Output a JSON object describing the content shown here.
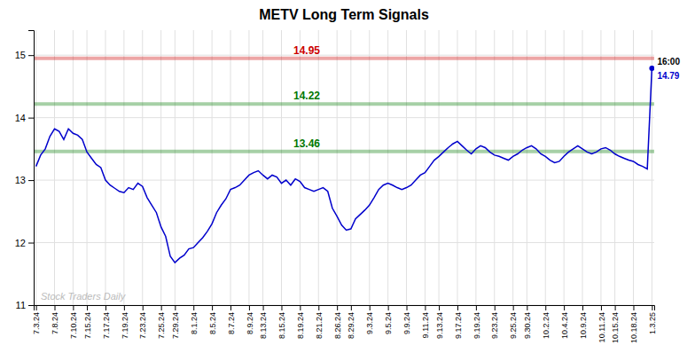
{
  "chart_data": {
    "type": "line",
    "title": "METV Long Term Signals",
    "color": "#0000CC",
    "grid": true,
    "categories": [
      "7.3.24",
      null,
      null,
      null,
      "7.8.24",
      null,
      null,
      null,
      "7.10.24",
      null,
      null,
      "7.15.24",
      null,
      null,
      null,
      "7.17.24",
      null,
      null,
      null,
      "7.19.24",
      null,
      null,
      null,
      "7.23.24",
      null,
      null,
      null,
      "7.25.24",
      null,
      null,
      "7.29.24",
      null,
      null,
      null,
      "8.1.24",
      null,
      null,
      null,
      "8.5.24",
      null,
      null,
      null,
      "8.7.24",
      null,
      null,
      null,
      "8.9.24",
      null,
      null,
      "8.13.24",
      null,
      null,
      null,
      "8.15.24",
      null,
      null,
      null,
      "8.19.24",
      null,
      null,
      null,
      "8.21.24",
      null,
      null,
      null,
      "8.26.24",
      null,
      null,
      "8.29.24",
      null,
      null,
      null,
      "9.3.24",
      null,
      null,
      null,
      "9.5.24",
      null,
      null,
      null,
      "9.9.24",
      null,
      null,
      null,
      "9.11.24",
      null,
      null,
      "9.13.24",
      null,
      null,
      null,
      "9.17.24",
      null,
      null,
      null,
      "9.19.24",
      null,
      null,
      null,
      "9.23.24",
      null,
      null,
      null,
      "9.25.24",
      null,
      null,
      "9.30.24",
      null,
      null,
      null,
      "10.2.24",
      null,
      null,
      null,
      "10.4.24",
      null,
      null,
      null,
      "10.9.24",
      null,
      null,
      null,
      "10.11.24",
      null,
      null,
      "10.15.24",
      null,
      null,
      null,
      "10.18.24",
      null,
      null,
      null,
      "1.3.25"
    ],
    "values": [
      13.22,
      13.4,
      13.5,
      13.7,
      13.82,
      13.78,
      13.65,
      13.82,
      13.75,
      13.72,
      13.65,
      13.45,
      13.35,
      13.25,
      13.2,
      13.0,
      12.92,
      12.87,
      12.82,
      12.8,
      12.88,
      12.85,
      12.95,
      12.9,
      12.72,
      12.6,
      12.48,
      12.25,
      12.1,
      11.78,
      11.68,
      11.75,
      11.8,
      11.9,
      11.92,
      12.0,
      12.08,
      12.18,
      12.3,
      12.48,
      12.6,
      12.7,
      12.85,
      12.88,
      12.92,
      13.0,
      13.08,
      13.12,
      13.15,
      13.08,
      13.02,
      13.08,
      13.05,
      12.95,
      13.0,
      12.92,
      13.02,
      12.98,
      12.88,
      12.85,
      12.82,
      12.85,
      12.88,
      12.82,
      12.55,
      12.42,
      12.28,
      12.2,
      12.22,
      12.38,
      12.45,
      12.52,
      12.6,
      12.72,
      12.85,
      12.92,
      12.95,
      12.92,
      12.88,
      12.85,
      12.88,
      12.92,
      13.0,
      13.08,
      13.12,
      13.22,
      13.32,
      13.38,
      13.45,
      13.52,
      13.58,
      13.62,
      13.55,
      13.48,
      13.42,
      13.5,
      13.55,
      13.52,
      13.45,
      13.4,
      13.38,
      13.35,
      13.32,
      13.38,
      13.42,
      13.48,
      13.52,
      13.55,
      13.5,
      13.42,
      13.38,
      13.32,
      13.28,
      13.3,
      13.38,
      13.45,
      13.5,
      13.55,
      13.5,
      13.45,
      13.42,
      13.45,
      13.5,
      13.52,
      13.48,
      13.42,
      13.38,
      13.35,
      13.32,
      13.3,
      13.25,
      13.22,
      13.18,
      14.79
    ],
    "ylim": [
      11,
      15.4
    ],
    "yticks": [
      11,
      12,
      13,
      14,
      15
    ],
    "reference_lines": [
      {
        "value": 14.95,
        "label": "14.95",
        "color": "#cc0000"
      },
      {
        "value": 14.22,
        "label": "14.22",
        "color": "#007700"
      },
      {
        "value": 13.46,
        "label": "13.46",
        "color": "#007700"
      }
    ],
    "annotations": [
      {
        "text": "16:00"
      },
      {
        "text": "Stock Traders Daily",
        "color": "#bbbbbb"
      }
    ]
  }
}
